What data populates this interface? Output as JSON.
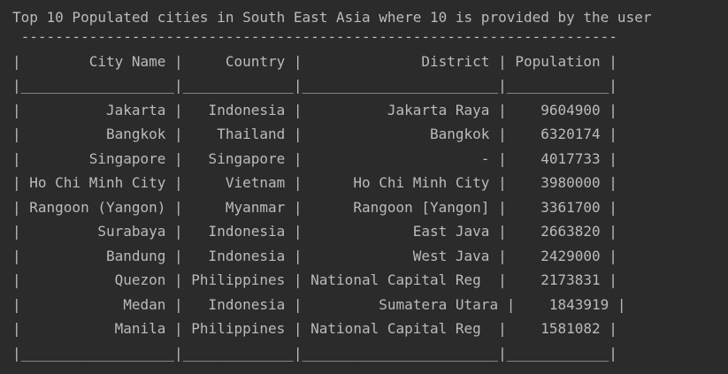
{
  "console": {
    "heading": "Top 10 Populated cities in South East Asia where 10 is provided by the user",
    "top_rule": " ----------------------------------------------------------------------",
    "header_row": "|        City Name |     Country |              District | Population |",
    "separator_row": "|__________________|_____________|_______________________|____________|",
    "rows": [
      "|          Jakarta |   Indonesia |          Jakarta Raya |    9604900 |",
      "|          Bangkok |    Thailand |               Bangkok |    6320174 |",
      "|        Singapore |   Singapore |                     - |    4017733 |",
      "| Ho Chi Minh City |     Vietnam |      Ho Chi Minh City |    3980000 |",
      "| Rangoon (Yangon) |     Myanmar |      Rangoon [Yangon] |    3361700 |",
      "|         Surabaya |   Indonesia |             East Java |    2663820 |",
      "|          Bandung |   Indonesia |             West Java |    2429000 |",
      "|           Quezon | Philippines | National Capital Reg  |    2173831 |",
      "|            Medan |   Indonesia |         Sumatera Utara |    1843919 |",
      "|           Manila | Philippines | National Capital Reg  |    1581082 |"
    ],
    "bottom_row": "|__________________|_____________|_______________________|____________|"
  },
  "colors": {
    "background": "#2b2b2b",
    "text": "#bbbbbb"
  }
}
